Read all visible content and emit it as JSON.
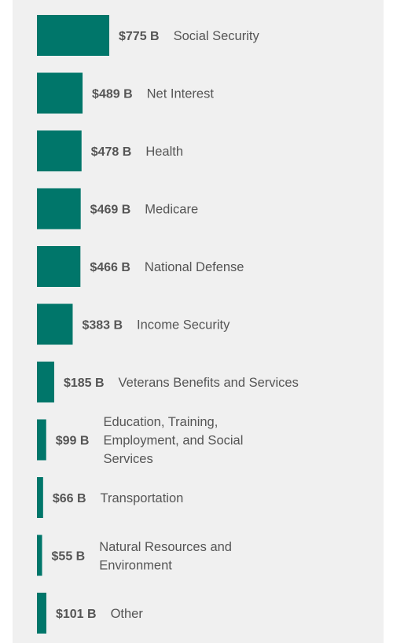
{
  "chart_data": {
    "type": "bar",
    "orientation": "horizontal",
    "color": "#00766a",
    "categories": [
      "Social Security",
      "Net Interest",
      "Health",
      "Medicare",
      "National Defense",
      "Income Security",
      "Veterans Benefits and Services",
      "Education, Training, Employment, and Social Services",
      "Transportation",
      "Natural Resources and Environment",
      "Other"
    ],
    "values": [
      775,
      489,
      478,
      469,
      466,
      383,
      185,
      99,
      66,
      55,
      101
    ],
    "value_labels": [
      "$775 B",
      "$489 B",
      "$478 B",
      "$469 B",
      "$466 B",
      "$383 B",
      "$185 B",
      "$99 B",
      "$66 B",
      "$55 B",
      "$101 B"
    ],
    "label_lines": [
      [
        "Social Security"
      ],
      [
        "Net Interest"
      ],
      [
        "Health"
      ],
      [
        "Medicare"
      ],
      [
        "National Defense"
      ],
      [
        "Income Security"
      ],
      [
        "Veterans Benefits and Services"
      ],
      [
        "Education, Training,",
        "Employment, and Social",
        "Services"
      ],
      [
        "Transportation"
      ],
      [
        "Natural Resources and",
        "Environment"
      ],
      [
        "Other"
      ]
    ]
  }
}
